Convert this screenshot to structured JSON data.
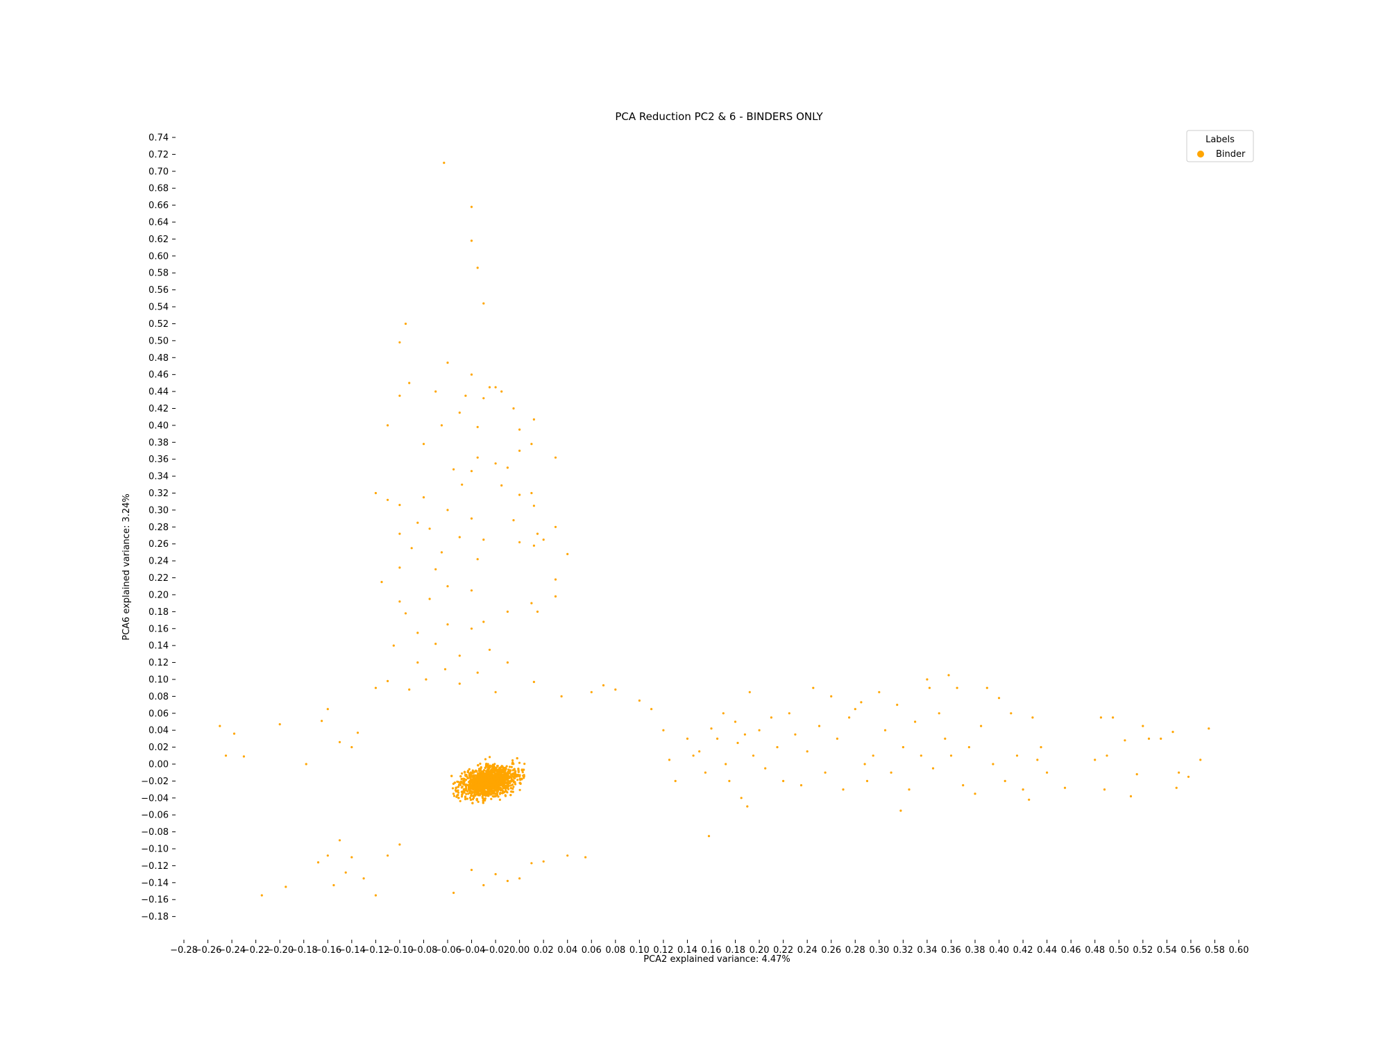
{
  "chart_data": {
    "type": "scatter",
    "title": "PCA Reduction PC2 & 6 - BINDERS ONLY",
    "xlabel": "PCA2 explained variance: 4.47%",
    "ylabel": "PCA6 explained variance: 3.24%",
    "xlim": [
      -0.29,
      0.61
    ],
    "ylim": [
      -0.19,
      0.75
    ],
    "xticks": [
      -0.28,
      -0.26,
      -0.24,
      -0.22,
      -0.2,
      -0.18,
      -0.16,
      -0.14,
      -0.12,
      -0.1,
      -0.08,
      -0.06,
      -0.04,
      -0.02,
      0.0,
      0.02,
      0.04,
      0.06,
      0.08,
      0.1,
      0.12,
      0.14,
      0.16,
      0.18,
      0.2,
      0.22,
      0.24,
      0.26,
      0.28,
      0.3,
      0.32,
      0.34,
      0.36,
      0.38,
      0.4,
      0.42,
      0.44,
      0.46,
      0.48,
      0.5,
      0.52,
      0.54,
      0.56,
      0.58,
      0.6
    ],
    "yticks": [
      -0.18,
      -0.16,
      -0.14,
      -0.12,
      -0.1,
      -0.08,
      -0.06,
      -0.04,
      -0.02,
      0.0,
      0.02,
      0.04,
      0.06,
      0.08,
      0.1,
      0.12,
      0.14,
      0.16,
      0.18,
      0.2,
      0.22,
      0.24,
      0.26,
      0.28,
      0.3,
      0.32,
      0.34,
      0.36,
      0.38,
      0.4,
      0.42,
      0.44,
      0.46,
      0.48,
      0.5,
      0.52,
      0.54,
      0.56,
      0.58,
      0.6,
      0.62,
      0.64,
      0.66,
      0.68,
      0.7,
      0.72,
      0.74
    ],
    "legend": {
      "title": "Labels",
      "placement": "top-right"
    },
    "grid": false,
    "series": [
      {
        "name": "Binder",
        "color": "#FFA500",
        "points": [
          [
            -0.063,
            0.71
          ],
          [
            -0.04,
            0.658
          ],
          [
            -0.04,
            0.618
          ],
          [
            -0.035,
            0.586
          ],
          [
            -0.03,
            0.544
          ],
          [
            -0.095,
            0.52
          ],
          [
            -0.1,
            0.498
          ],
          [
            -0.06,
            0.474
          ],
          [
            -0.092,
            0.45
          ],
          [
            -0.04,
            0.46
          ],
          [
            -0.025,
            0.445
          ],
          [
            -0.02,
            0.445
          ],
          [
            -0.045,
            0.435
          ],
          [
            -0.07,
            0.44
          ],
          [
            -0.1,
            0.435
          ],
          [
            -0.03,
            0.432
          ],
          [
            -0.015,
            0.44
          ],
          [
            -0.005,
            0.42
          ],
          [
            0.012,
            0.407
          ],
          [
            -0.05,
            0.415
          ],
          [
            -0.11,
            0.4
          ],
          [
            -0.065,
            0.4
          ],
          [
            -0.035,
            0.398
          ],
          [
            0.0,
            0.395
          ],
          [
            -0.08,
            0.378
          ],
          [
            0.01,
            0.378
          ],
          [
            0.0,
            0.37
          ],
          [
            -0.035,
            0.362
          ],
          [
            0.03,
            0.362
          ],
          [
            -0.02,
            0.355
          ],
          [
            -0.01,
            0.35
          ],
          [
            -0.055,
            0.348
          ],
          [
            -0.04,
            0.346
          ],
          [
            -0.048,
            0.33
          ],
          [
            -0.015,
            0.329
          ],
          [
            0.01,
            0.32
          ],
          [
            -0.12,
            0.32
          ],
          [
            -0.11,
            0.312
          ],
          [
            -0.08,
            0.315
          ],
          [
            0.0,
            0.318
          ],
          [
            -0.1,
            0.306
          ],
          [
            -0.06,
            0.3
          ],
          [
            0.012,
            0.305
          ],
          [
            -0.04,
            0.29
          ],
          [
            -0.085,
            0.285
          ],
          [
            -0.005,
            0.288
          ],
          [
            0.03,
            0.28
          ],
          [
            -0.075,
            0.278
          ],
          [
            0.015,
            0.272
          ],
          [
            -0.1,
            0.272
          ],
          [
            -0.05,
            0.268
          ],
          [
            -0.03,
            0.265
          ],
          [
            0.0,
            0.262
          ],
          [
            0.02,
            0.265
          ],
          [
            0.04,
            0.248
          ],
          [
            -0.09,
            0.255
          ],
          [
            -0.065,
            0.25
          ],
          [
            0.012,
            0.258
          ],
          [
            -0.035,
            0.242
          ],
          [
            -0.1,
            0.232
          ],
          [
            -0.07,
            0.23
          ],
          [
            0.03,
            0.218
          ],
          [
            -0.115,
            0.215
          ],
          [
            -0.06,
            0.21
          ],
          [
            -0.04,
            0.205
          ],
          [
            -0.075,
            0.195
          ],
          [
            -0.01,
            0.18
          ],
          [
            0.01,
            0.19
          ],
          [
            -0.1,
            0.192
          ],
          [
            0.03,
            0.198
          ],
          [
            -0.095,
            0.178
          ],
          [
            -0.03,
            0.168
          ],
          [
            -0.06,
            0.165
          ],
          [
            0.015,
            0.18
          ],
          [
            -0.04,
            0.16
          ],
          [
            -0.085,
            0.155
          ],
          [
            -0.07,
            0.142
          ],
          [
            -0.025,
            0.135
          ],
          [
            -0.105,
            0.14
          ],
          [
            -0.05,
            0.128
          ],
          [
            -0.01,
            0.12
          ],
          [
            -0.085,
            0.12
          ],
          [
            -0.062,
            0.112
          ],
          [
            -0.035,
            0.108
          ],
          [
            -0.078,
            0.1
          ],
          [
            -0.11,
            0.098
          ],
          [
            0.012,
            0.097
          ],
          [
            -0.05,
            0.095
          ],
          [
            -0.12,
            0.09
          ],
          [
            -0.092,
            0.088
          ],
          [
            0.07,
            0.093
          ],
          [
            0.08,
            0.088
          ],
          [
            0.06,
            0.085
          ],
          [
            -0.02,
            0.085
          ],
          [
            0.035,
            0.08
          ],
          [
            -0.25,
            0.045
          ],
          [
            -0.238,
            0.036
          ],
          [
            -0.23,
            0.009
          ],
          [
            -0.245,
            0.01
          ],
          [
            -0.2,
            0.047
          ],
          [
            -0.178,
            0.0
          ],
          [
            -0.165,
            0.051
          ],
          [
            -0.16,
            0.065
          ],
          [
            -0.15,
            0.026
          ],
          [
            -0.14,
            0.02
          ],
          [
            -0.135,
            0.037
          ],
          [
            -0.16,
            -0.108
          ],
          [
            -0.15,
            -0.09
          ],
          [
            -0.168,
            -0.116
          ],
          [
            -0.145,
            -0.128
          ],
          [
            -0.14,
            -0.11
          ],
          [
            -0.13,
            -0.135
          ],
          [
            -0.155,
            -0.143
          ],
          [
            -0.12,
            -0.155
          ],
          [
            -0.215,
            -0.155
          ],
          [
            -0.195,
            -0.145
          ],
          [
            -0.11,
            -0.108
          ],
          [
            -0.1,
            -0.095
          ],
          [
            -0.055,
            -0.152
          ],
          [
            -0.03,
            -0.143
          ],
          [
            -0.02,
            -0.13
          ],
          [
            -0.01,
            -0.138
          ],
          [
            0.0,
            -0.135
          ],
          [
            0.01,
            -0.117
          ],
          [
            -0.04,
            -0.125
          ],
          [
            0.02,
            -0.115
          ],
          [
            0.04,
            -0.108
          ],
          [
            0.055,
            -0.11
          ],
          [
            0.1,
            0.075
          ],
          [
            0.11,
            0.065
          ],
          [
            0.12,
            0.04
          ],
          [
            0.125,
            0.005
          ],
          [
            0.13,
            -0.02
          ],
          [
            0.14,
            0.03
          ],
          [
            0.145,
            0.01
          ],
          [
            0.15,
            0.015
          ],
          [
            0.155,
            -0.01
          ],
          [
            0.158,
            -0.085
          ],
          [
            0.16,
            0.042
          ],
          [
            0.165,
            0.03
          ],
          [
            0.17,
            0.06
          ],
          [
            0.172,
            0.0
          ],
          [
            0.175,
            -0.02
          ],
          [
            0.18,
            0.05
          ],
          [
            0.182,
            0.025
          ],
          [
            0.185,
            -0.04
          ],
          [
            0.188,
            0.035
          ],
          [
            0.19,
            -0.05
          ],
          [
            0.192,
            0.085
          ],
          [
            0.195,
            0.01
          ],
          [
            0.2,
            0.04
          ],
          [
            0.205,
            -0.005
          ],
          [
            0.21,
            0.055
          ],
          [
            0.215,
            0.02
          ],
          [
            0.22,
            -0.02
          ],
          [
            0.225,
            0.06
          ],
          [
            0.23,
            0.035
          ],
          [
            0.235,
            -0.025
          ],
          [
            0.24,
            0.015
          ],
          [
            0.245,
            0.09
          ],
          [
            0.25,
            0.045
          ],
          [
            0.255,
            -0.01
          ],
          [
            0.26,
            0.08
          ],
          [
            0.265,
            0.03
          ],
          [
            0.27,
            -0.03
          ],
          [
            0.275,
            0.055
          ],
          [
            0.28,
            0.065
          ],
          [
            0.285,
            0.073
          ],
          [
            0.288,
            0.0
          ],
          [
            0.29,
            -0.02
          ],
          [
            0.295,
            0.01
          ],
          [
            0.3,
            0.085
          ],
          [
            0.305,
            0.04
          ],
          [
            0.31,
            -0.01
          ],
          [
            0.315,
            0.07
          ],
          [
            0.318,
            -0.055
          ],
          [
            0.32,
            0.02
          ],
          [
            0.325,
            -0.03
          ],
          [
            0.33,
            0.05
          ],
          [
            0.335,
            0.01
          ],
          [
            0.34,
            0.1
          ],
          [
            0.342,
            0.09
          ],
          [
            0.345,
            -0.005
          ],
          [
            0.35,
            0.06
          ],
          [
            0.355,
            0.03
          ],
          [
            0.358,
            0.105
          ],
          [
            0.36,
            0.01
          ],
          [
            0.365,
            0.09
          ],
          [
            0.37,
            -0.025
          ],
          [
            0.375,
            0.02
          ],
          [
            0.38,
            -0.035
          ],
          [
            0.385,
            0.045
          ],
          [
            0.39,
            0.09
          ],
          [
            0.395,
            0.0
          ],
          [
            0.4,
            0.078
          ],
          [
            0.405,
            -0.02
          ],
          [
            0.41,
            0.06
          ],
          [
            0.415,
            0.01
          ],
          [
            0.42,
            -0.03
          ],
          [
            0.425,
            -0.042
          ],
          [
            0.428,
            0.055
          ],
          [
            0.432,
            0.005
          ],
          [
            0.435,
            0.02
          ],
          [
            0.44,
            -0.01
          ],
          [
            0.455,
            -0.028
          ],
          [
            0.48,
            0.005
          ],
          [
            0.485,
            0.055
          ],
          [
            0.488,
            -0.03
          ],
          [
            0.49,
            0.01
          ],
          [
            0.495,
            0.055
          ],
          [
            0.505,
            0.028
          ],
          [
            0.51,
            -0.038
          ],
          [
            0.515,
            -0.012
          ],
          [
            0.52,
            0.045
          ],
          [
            0.525,
            0.03
          ],
          [
            0.535,
            0.03
          ],
          [
            0.545,
            0.038
          ],
          [
            0.548,
            -0.028
          ],
          [
            0.55,
            -0.01
          ],
          [
            0.558,
            -0.015
          ],
          [
            0.568,
            0.005
          ],
          [
            0.575,
            0.042
          ]
        ]
      }
    ]
  },
  "legend": {
    "title": "Labels",
    "entry": "Binder"
  }
}
